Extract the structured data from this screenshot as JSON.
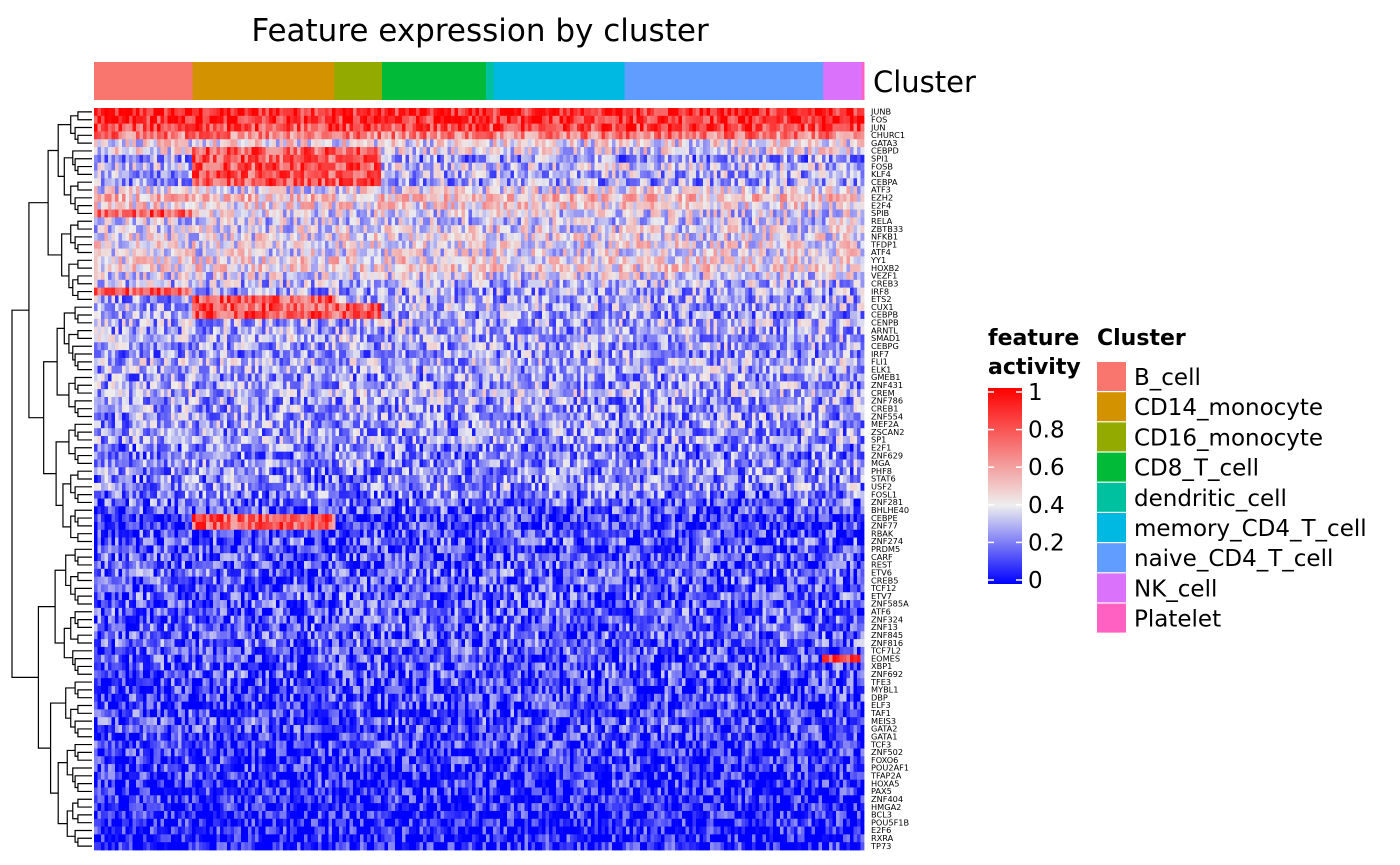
{
  "chart_data": {
    "type": "heatmap",
    "title": "Feature expression by cluster",
    "annotation_label": "Cluster",
    "colorbar": {
      "title_lines": [
        "feature",
        "activity"
      ],
      "ticks": [
        1,
        0.8,
        0.6,
        0.4,
        0.2,
        0
      ],
      "range": [
        0,
        1
      ],
      "colors": [
        "#0000ff",
        "#eeeeee",
        "#ff0000"
      ]
    },
    "cluster_legend": {
      "title": "Cluster",
      "items": [
        {
          "name": "B_cell",
          "color": "#f8766d"
        },
        {
          "name": "CD14_monocyte",
          "color": "#d39200"
        },
        {
          "name": "CD16_monocyte",
          "color": "#93aa00"
        },
        {
          "name": "CD8_T_cell",
          "color": "#00ba38"
        },
        {
          "name": "dendritic_cell",
          "color": "#00c19f"
        },
        {
          "name": "memory_CD4_T_cell",
          "color": "#00b9e3"
        },
        {
          "name": "naive_CD4_T_cell",
          "color": "#619cff"
        },
        {
          "name": "NK_cell",
          "color": "#db72fb"
        },
        {
          "name": "Platelet",
          "color": "#ff61c3"
        }
      ]
    },
    "column_clusters": [
      {
        "cluster": "B_cell",
        "fraction": 0.128
      },
      {
        "cluster": "CD14_monocyte",
        "fraction": 0.184
      },
      {
        "cluster": "CD16_monocyte",
        "fraction": 0.062
      },
      {
        "cluster": "CD8_T_cell",
        "fraction": 0.135
      },
      {
        "cluster": "dendritic_cell",
        "fraction": 0.01
      },
      {
        "cluster": "memory_CD4_T_cell",
        "fraction": 0.17
      },
      {
        "cluster": "naive_CD4_T_cell",
        "fraction": 0.258
      },
      {
        "cluster": "NK_cell",
        "fraction": 0.05
      },
      {
        "cluster": "Platelet",
        "fraction": 0.003
      }
    ],
    "rows": [
      {
        "gene": "JUNB",
        "level": 0.9,
        "high": []
      },
      {
        "gene": "FOS",
        "level": 0.88,
        "high": []
      },
      {
        "gene": "JUN",
        "level": 0.82,
        "high": []
      },
      {
        "gene": "CHURC1",
        "level": 0.7,
        "high": []
      },
      {
        "gene": "GATA3",
        "level": 0.42,
        "high": []
      },
      {
        "gene": "CEBPD",
        "level": 0.4,
        "high": [
          "CD14_monocyte",
          "CD16_monocyte"
        ]
      },
      {
        "gene": "SPI1",
        "level": 0.25,
        "high": [
          "CD14_monocyte",
          "CD16_monocyte"
        ]
      },
      {
        "gene": "FOSB",
        "level": 0.35,
        "high": [
          "CD14_monocyte",
          "CD16_monocyte"
        ]
      },
      {
        "gene": "KLF4",
        "level": 0.3,
        "high": [
          "CD14_monocyte",
          "CD16_monocyte"
        ]
      },
      {
        "gene": "CEBPA",
        "level": 0.28,
        "high": [
          "CD14_monocyte",
          "CD16_monocyte"
        ]
      },
      {
        "gene": "ATF3",
        "level": 0.4,
        "high": []
      },
      {
        "gene": "EZH2",
        "level": 0.5,
        "high": []
      },
      {
        "gene": "E2F4",
        "level": 0.45,
        "high": []
      },
      {
        "gene": "SPIB",
        "level": 0.38,
        "high": [
          "B_cell"
        ]
      },
      {
        "gene": "RELA",
        "level": 0.35,
        "high": []
      },
      {
        "gene": "ZBTB33",
        "level": 0.38,
        "high": []
      },
      {
        "gene": "NFKB1",
        "level": 0.4,
        "high": []
      },
      {
        "gene": "TFDP1",
        "level": 0.42,
        "high": []
      },
      {
        "gene": "ATF4",
        "level": 0.4,
        "high": []
      },
      {
        "gene": "YY1",
        "level": 0.45,
        "high": []
      },
      {
        "gene": "HOXB2",
        "level": 0.45,
        "high": []
      },
      {
        "gene": "VEZF1",
        "level": 0.38,
        "high": []
      },
      {
        "gene": "CREB3",
        "level": 0.32,
        "high": []
      },
      {
        "gene": "IRF8",
        "level": 0.28,
        "high": [
          "B_cell"
        ]
      },
      {
        "gene": "ETS2",
        "level": 0.28,
        "high": [
          "CD14_monocyte"
        ]
      },
      {
        "gene": "CUX1",
        "level": 0.3,
        "high": [
          "CD14_monocyte",
          "CD16_monocyte"
        ]
      },
      {
        "gene": "CEBPB",
        "level": 0.25,
        "high": [
          "CD14_monocyte",
          "CD16_monocyte"
        ]
      },
      {
        "gene": "CENPB",
        "level": 0.3,
        "high": []
      },
      {
        "gene": "ARNTL",
        "level": 0.28,
        "high": []
      },
      {
        "gene": "SMAD1",
        "level": 0.3,
        "high": []
      },
      {
        "gene": "CEBPG",
        "level": 0.28,
        "high": []
      },
      {
        "gene": "IRF7",
        "level": 0.25,
        "high": []
      },
      {
        "gene": "FLI1",
        "level": 0.3,
        "high": []
      },
      {
        "gene": "ELK1",
        "level": 0.28,
        "high": []
      },
      {
        "gene": "GMEB1",
        "level": 0.25,
        "high": []
      },
      {
        "gene": "ZNF431",
        "level": 0.27,
        "high": []
      },
      {
        "gene": "CREM",
        "level": 0.3,
        "high": []
      },
      {
        "gene": "ZNF786",
        "level": 0.26,
        "high": []
      },
      {
        "gene": "CREB1",
        "level": 0.27,
        "high": []
      },
      {
        "gene": "ZNF554",
        "level": 0.25,
        "high": []
      },
      {
        "gene": "MEF2A",
        "level": 0.26,
        "high": []
      },
      {
        "gene": "ZSCAN2",
        "level": 0.25,
        "high": []
      },
      {
        "gene": "SP1",
        "level": 0.27,
        "high": []
      },
      {
        "gene": "E2F1",
        "level": 0.22,
        "high": []
      },
      {
        "gene": "ZNF629",
        "level": 0.2,
        "high": []
      },
      {
        "gene": "MGA",
        "level": 0.25,
        "high": []
      },
      {
        "gene": "PHF8",
        "level": 0.23,
        "high": []
      },
      {
        "gene": "STAT6",
        "level": 0.22,
        "high": []
      },
      {
        "gene": "USF2",
        "level": 0.25,
        "high": []
      },
      {
        "gene": "FOSL1",
        "level": 0.2,
        "high": []
      },
      {
        "gene": "ZNF281",
        "level": 0.18,
        "high": []
      },
      {
        "gene": "BHLHE40",
        "level": 0.15,
        "high": []
      },
      {
        "gene": "CEBPE",
        "level": 0.1,
        "high": [
          "CD14_monocyte"
        ]
      },
      {
        "gene": "ZNF77",
        "level": 0.1,
        "high": [
          "CD14_monocyte"
        ]
      },
      {
        "gene": "RBAK",
        "level": 0.12,
        "high": []
      },
      {
        "gene": "ZNF274",
        "level": 0.15,
        "high": []
      },
      {
        "gene": "PRDM5",
        "level": 0.12,
        "high": []
      },
      {
        "gene": "CARF",
        "level": 0.15,
        "high": []
      },
      {
        "gene": "REST",
        "level": 0.14,
        "high": []
      },
      {
        "gene": "ETV6",
        "level": 0.16,
        "high": []
      },
      {
        "gene": "CREB5",
        "level": 0.15,
        "high": []
      },
      {
        "gene": "TCF12",
        "level": 0.14,
        "high": []
      },
      {
        "gene": "ETV7",
        "level": 0.16,
        "high": []
      },
      {
        "gene": "ZNF585A",
        "level": 0.14,
        "high": []
      },
      {
        "gene": "ATF6",
        "level": 0.16,
        "high": []
      },
      {
        "gene": "ZNF324",
        "level": 0.15,
        "high": []
      },
      {
        "gene": "ZNF13",
        "level": 0.16,
        "high": []
      },
      {
        "gene": "ZNF845",
        "level": 0.15,
        "high": []
      },
      {
        "gene": "ZNF816",
        "level": 0.16,
        "high": []
      },
      {
        "gene": "TCF7L2",
        "level": 0.14,
        "high": []
      },
      {
        "gene": "EOMES",
        "level": 0.12,
        "high": [
          "NK_cell"
        ]
      },
      {
        "gene": "XBP1",
        "level": 0.14,
        "high": []
      },
      {
        "gene": "ZNF692",
        "level": 0.14,
        "high": []
      },
      {
        "gene": "TFE3",
        "level": 0.12,
        "high": []
      },
      {
        "gene": "MYBL1",
        "level": 0.1,
        "high": []
      },
      {
        "gene": "DBP",
        "level": 0.12,
        "high": []
      },
      {
        "gene": "ELF3",
        "level": 0.1,
        "high": []
      },
      {
        "gene": "TAF1",
        "level": 0.12,
        "high": []
      },
      {
        "gene": "MEIS3",
        "level": 0.14,
        "high": []
      },
      {
        "gene": "GATA2",
        "level": 0.12,
        "high": []
      },
      {
        "gene": "GATA1",
        "level": 0.1,
        "high": []
      },
      {
        "gene": "TCF3",
        "level": 0.1,
        "high": []
      },
      {
        "gene": "ZNF502",
        "level": 0.08,
        "high": []
      },
      {
        "gene": "FOXO6",
        "level": 0.08,
        "high": []
      },
      {
        "gene": "POU2AF1",
        "level": 0.08,
        "high": []
      },
      {
        "gene": "TFAP2A",
        "level": 0.06,
        "high": []
      },
      {
        "gene": "HOXA5",
        "level": 0.07,
        "high": []
      },
      {
        "gene": "PAX5",
        "level": 0.06,
        "high": []
      },
      {
        "gene": "ZNF404",
        "level": 0.06,
        "high": []
      },
      {
        "gene": "HMGA2",
        "level": 0.05,
        "high": []
      },
      {
        "gene": "BCL3",
        "level": 0.05,
        "high": []
      },
      {
        "gene": "POU5F1B",
        "level": 0.05,
        "high": []
      },
      {
        "gene": "E2F6",
        "level": 0.05,
        "high": []
      },
      {
        "gene": "RXRA",
        "level": 0.04,
        "high": []
      },
      {
        "gene": "TP73",
        "level": 0.04,
        "high": []
      }
    ]
  }
}
